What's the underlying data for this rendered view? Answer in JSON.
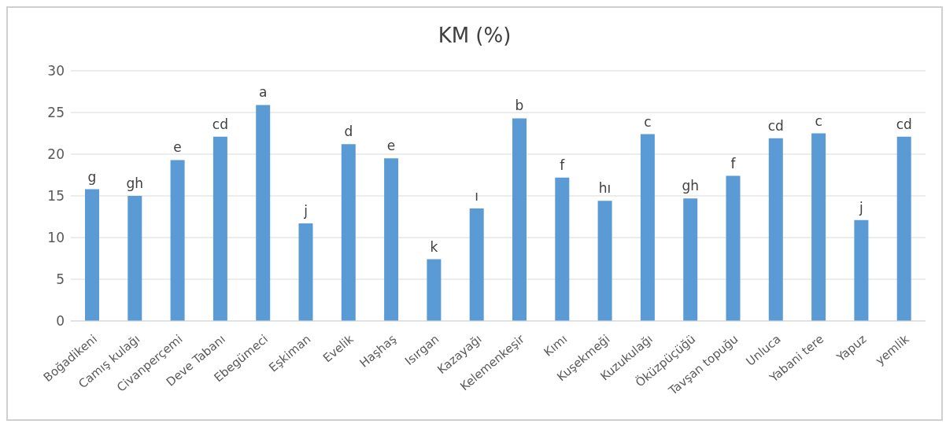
{
  "chart_data": {
    "type": "bar",
    "title": "KM (%)",
    "categories": [
      "Boğadikeni",
      "Camış kulağı",
      "Civanperçemi",
      "Deve Tabanı",
      "Ebegümeci",
      "Eşkiman",
      "Evelik",
      "Haşhaş",
      "Isırgan",
      "Kazayağı",
      "Kelemenkeşir",
      "Kımı",
      "Kuşekmeği",
      "Kuzukulağı",
      "Öküzpüçüğü",
      "Tavşan topuğu",
      "Unluca",
      "Yabani tere",
      "Yapuz",
      "yemlik"
    ],
    "values": [
      15.8,
      15.0,
      19.3,
      22.1,
      25.9,
      11.7,
      21.2,
      19.5,
      7.4,
      13.5,
      24.3,
      17.2,
      14.4,
      22.4,
      14.7,
      17.4,
      21.9,
      22.5,
      12.1,
      22.1
    ],
    "value_labels": [
      "g",
      "gh",
      "e",
      "cd",
      "a",
      "j",
      "d",
      "e",
      "k",
      "ı",
      "b",
      "f",
      "hı",
      "c",
      "gh",
      "f",
      "cd",
      "c",
      "j",
      "cd"
    ],
    "color": "#5b9bd5",
    "ylim": [
      0,
      30
    ],
    "yticks": [
      0,
      5,
      10,
      15,
      20,
      25,
      30
    ],
    "grid": "y",
    "legend": false
  }
}
